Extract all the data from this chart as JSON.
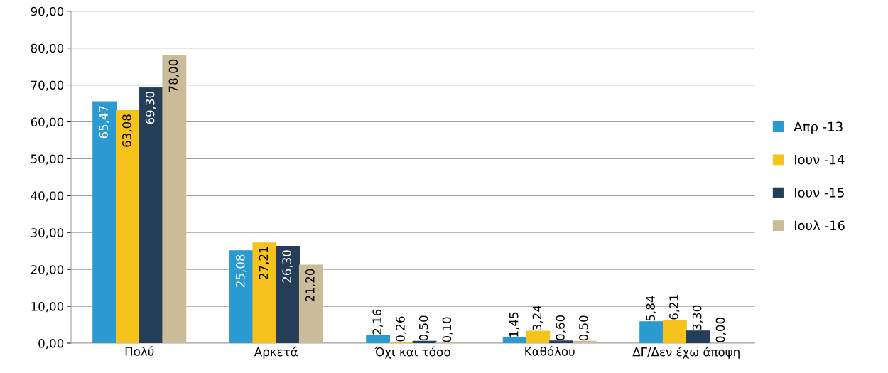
{
  "chart_data": {
    "type": "bar",
    "categories": [
      "Πολύ",
      "Αρκετά",
      "Όχι και τόσο",
      "Καθόλου",
      "ΔΓ/Δεν έχω άποψη"
    ],
    "series": [
      {
        "name": "Απρ -13",
        "color": "#2a9ad0",
        "values": [
          65.47,
          25.08,
          2.16,
          1.45,
          5.84
        ],
        "value_labels": [
          "65,47",
          "25,08",
          "2,16",
          "1,45",
          "5,84"
        ]
      },
      {
        "name": "Ιουν -14",
        "color": "#f6c21c",
        "values": [
          63.08,
          27.21,
          0.26,
          3.24,
          6.21
        ],
        "value_labels": [
          "63,08",
          "27,21",
          "0,26",
          "3,24",
          "6,21"
        ]
      },
      {
        "name": "Ιουν -15",
        "color": "#243e58",
        "values": [
          69.3,
          26.3,
          0.5,
          0.6,
          3.3
        ],
        "value_labels": [
          "69,30",
          "26,30",
          "0,50",
          "0,60",
          "3,30"
        ]
      },
      {
        "name": "Ιουλ -16",
        "color": "#cbbb98",
        "values": [
          78.0,
          21.2,
          0.1,
          0.5,
          0.0
        ],
        "value_labels": [
          "78,00",
          "21,20",
          "0,10",
          "0,50",
          "0,00"
        ]
      }
    ],
    "ylim": [
      0,
      90
    ],
    "yticks": [
      {
        "value": 0,
        "label": "0,00"
      },
      {
        "value": 10,
        "label": "10,00"
      },
      {
        "value": 20,
        "label": "20,00"
      },
      {
        "value": 30,
        "label": "30,00"
      },
      {
        "value": 40,
        "label": "40,00"
      },
      {
        "value": 50,
        "label": "50,00"
      },
      {
        "value": 60,
        "label": "60,00"
      },
      {
        "value": 70,
        "label": "70,00"
      },
      {
        "value": 80,
        "label": "80,00"
      },
      {
        "value": 90,
        "label": "90,00"
      }
    ],
    "grid": "y",
    "legend": "right"
  }
}
